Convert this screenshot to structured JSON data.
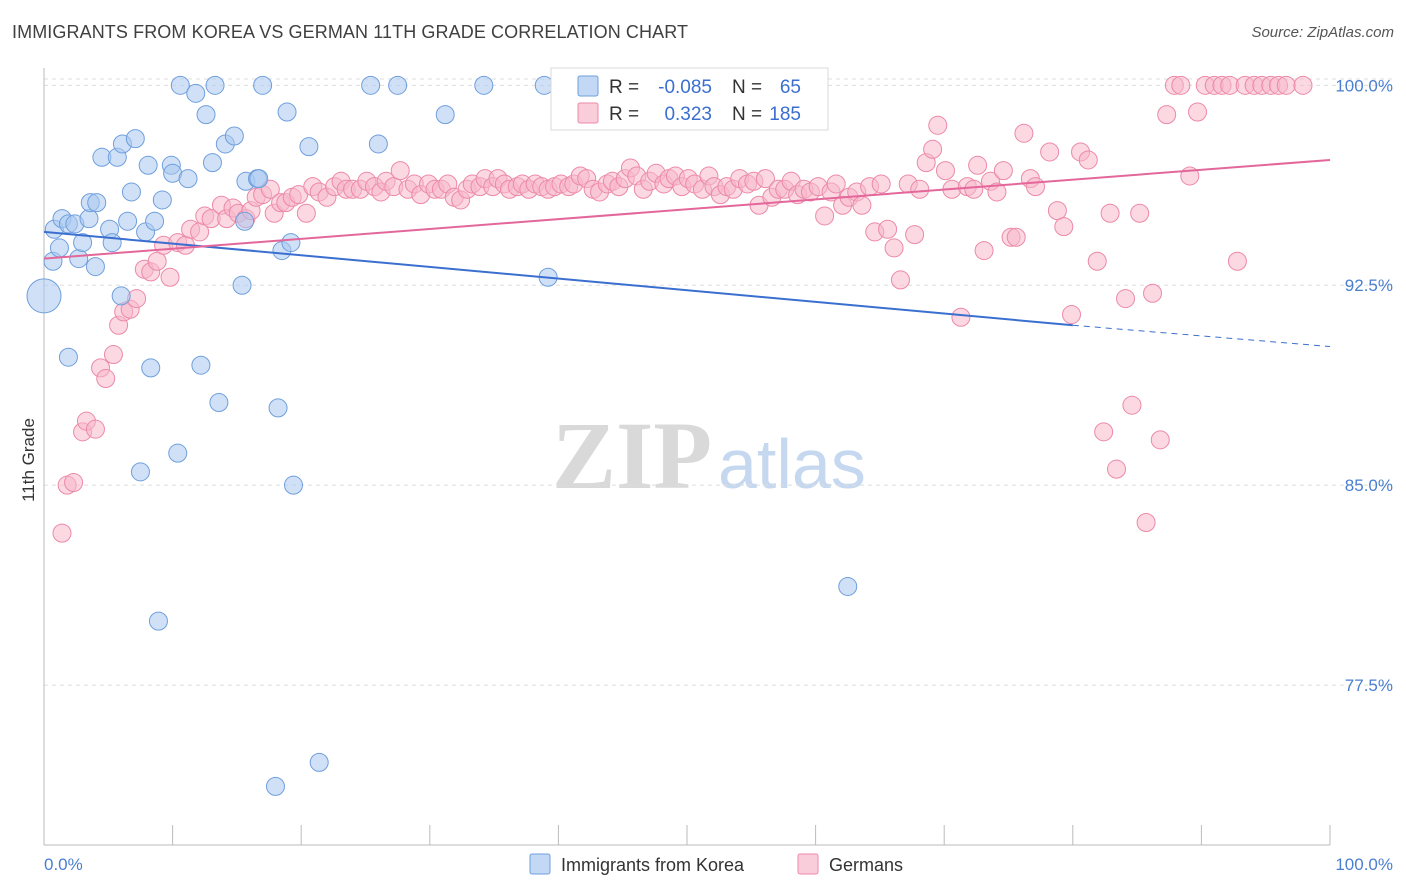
{
  "title": "IMMIGRANTS FROM KOREA VS GERMAN 11TH GRADE CORRELATION CHART",
  "source": "Source: ZipAtlas.com",
  "watermark": {
    "zip": "ZIP",
    "atlas": "atlas"
  },
  "colors": {
    "korea_fill": "#aac8f0",
    "korea_stroke": "#6f9fdc",
    "korea_line": "#3a6fd0",
    "german_fill": "#f7b8cb",
    "german_stroke": "#ec89a9",
    "german_line": "#e3679a",
    "grid": "#dddddd",
    "tick_text": "#4a7fd0"
  },
  "legend_stats": {
    "korea": {
      "r_label": "R =",
      "r_value": "-0.085",
      "n_label": "N =",
      "n_value": "65"
    },
    "german": {
      "r_label": "R =",
      "r_value": "0.323",
      "n_label": "N =",
      "n_value": "185"
    }
  },
  "chart_data": {
    "type": "scatter",
    "ylabel": "11th Grade",
    "xlim": [
      0,
      100
    ],
    "ylim": [
      71.5,
      100.5
    ],
    "x_tick_labels": [
      "0.0%",
      "100.0%"
    ],
    "y_ticks": [
      77.5,
      85.0,
      92.5,
      100.0
    ],
    "y_tick_labels": [
      "77.5%",
      "85.0%",
      "92.5%",
      "100.0%"
    ],
    "grid": true,
    "legend": [
      "Immigrants from Korea",
      "Germans"
    ],
    "legend_position": "bottom",
    "series": [
      {
        "name": "Immigrants from Korea",
        "trend": {
          "x": [
            0,
            80
          ],
          "y": [
            94.5,
            91.0
          ],
          "dashed_to": [
            100,
            90.2
          ]
        },
        "points": [
          [
            0,
            92.1
          ],
          [
            0.7,
            93.4
          ],
          [
            0.8,
            94.6
          ],
          [
            1.2,
            93.9
          ],
          [
            1.4,
            95.0
          ],
          [
            1.9,
            94.8
          ],
          [
            2.4,
            94.8
          ],
          [
            1.9,
            89.8
          ],
          [
            2.7,
            93.5
          ],
          [
            3.0,
            94.1
          ],
          [
            3.5,
            95.0
          ],
          [
            3.6,
            95.6
          ],
          [
            4.1,
            95.6
          ],
          [
            4.0,
            93.2
          ],
          [
            4.5,
            97.3
          ],
          [
            5.1,
            94.6
          ],
          [
            5.3,
            94.1
          ],
          [
            5.7,
            97.3
          ],
          [
            6.0,
            92.1
          ],
          [
            6.1,
            97.8
          ],
          [
            6.5,
            94.9
          ],
          [
            6.8,
            96.0
          ],
          [
            7.1,
            98.0
          ],
          [
            7.5,
            85.5
          ],
          [
            7.9,
            94.5
          ],
          [
            8.1,
            97.0
          ],
          [
            8.3,
            89.4
          ],
          [
            8.6,
            94.9
          ],
          [
            8.9,
            79.9
          ],
          [
            9.2,
            95.7
          ],
          [
            9.9,
            97.0
          ],
          [
            10.0,
            96.7
          ],
          [
            10.4,
            86.2
          ],
          [
            10.6,
            100.0
          ],
          [
            11.2,
            96.5
          ],
          [
            11.8,
            99.7
          ],
          [
            12.2,
            89.5
          ],
          [
            12.6,
            98.9
          ],
          [
            13.1,
            97.1
          ],
          [
            13.3,
            100.0
          ],
          [
            13.6,
            88.1
          ],
          [
            14.1,
            97.8
          ],
          [
            14.8,
            98.1
          ],
          [
            15.4,
            92.5
          ],
          [
            15.6,
            94.9
          ],
          [
            15.7,
            96.4
          ],
          [
            16.6,
            96.5
          ],
          [
            16.7,
            96.5
          ],
          [
            17.0,
            100.0
          ],
          [
            18.0,
            73.7
          ],
          [
            18.2,
            87.9
          ],
          [
            18.5,
            93.8
          ],
          [
            18.9,
            99.0
          ],
          [
            19.2,
            94.1
          ],
          [
            19.4,
            85.0
          ],
          [
            20.6,
            97.7
          ],
          [
            21.4,
            74.6
          ],
          [
            25.4,
            100.0
          ],
          [
            26.0,
            97.8
          ],
          [
            27.5,
            100.0
          ],
          [
            31.2,
            98.9
          ],
          [
            34.2,
            100.0
          ],
          [
            38.9,
            100.0
          ],
          [
            39.2,
            92.8
          ],
          [
            62.5,
            81.2
          ]
        ]
      },
      {
        "name": "Germans",
        "trend": {
          "x": [
            0,
            100
          ],
          "y": [
            93.5,
            97.2
          ]
        },
        "points": [
          [
            1.4,
            83.2
          ],
          [
            1.8,
            85.0
          ],
          [
            2.3,
            85.1
          ],
          [
            3.0,
            87.0
          ],
          [
            3.3,
            87.4
          ],
          [
            4.0,
            87.1
          ],
          [
            4.4,
            89.4
          ],
          [
            4.8,
            89.0
          ],
          [
            5.4,
            89.9
          ],
          [
            5.8,
            91.0
          ],
          [
            6.2,
            91.5
          ],
          [
            6.7,
            91.6
          ],
          [
            7.2,
            92.0
          ],
          [
            7.8,
            93.1
          ],
          [
            8.3,
            93.0
          ],
          [
            8.8,
            93.4
          ],
          [
            9.3,
            94.0
          ],
          [
            9.8,
            92.8
          ],
          [
            10.4,
            94.1
          ],
          [
            11.0,
            94.0
          ],
          [
            11.4,
            94.6
          ],
          [
            12.1,
            94.5
          ],
          [
            12.5,
            95.1
          ],
          [
            13.0,
            95.0
          ],
          [
            13.8,
            95.5
          ],
          [
            14.2,
            95.0
          ],
          [
            14.7,
            95.4
          ],
          [
            15.1,
            95.2
          ],
          [
            15.7,
            95.0
          ],
          [
            16.1,
            95.3
          ],
          [
            16.5,
            95.8
          ],
          [
            17.0,
            95.9
          ],
          [
            17.6,
            96.1
          ],
          [
            17.9,
            95.2
          ],
          [
            18.4,
            95.6
          ],
          [
            18.8,
            95.6
          ],
          [
            19.3,
            95.8
          ],
          [
            19.8,
            95.9
          ],
          [
            20.4,
            95.2
          ],
          [
            20.9,
            96.2
          ],
          [
            21.4,
            96.0
          ],
          [
            22.0,
            95.8
          ],
          [
            22.6,
            96.2
          ],
          [
            23.1,
            96.4
          ],
          [
            23.5,
            96.1
          ],
          [
            24.0,
            96.1
          ],
          [
            24.6,
            96.1
          ],
          [
            25.1,
            96.4
          ],
          [
            25.7,
            96.2
          ],
          [
            26.2,
            96.0
          ],
          [
            26.6,
            96.4
          ],
          [
            27.2,
            96.2
          ],
          [
            27.7,
            96.8
          ],
          [
            28.3,
            96.1
          ],
          [
            28.8,
            96.3
          ],
          [
            29.3,
            95.9
          ],
          [
            29.9,
            96.3
          ],
          [
            30.4,
            96.1
          ],
          [
            30.9,
            96.1
          ],
          [
            31.4,
            96.3
          ],
          [
            31.9,
            95.8
          ],
          [
            32.4,
            95.7
          ],
          [
            32.9,
            96.1
          ],
          [
            33.3,
            96.3
          ],
          [
            33.9,
            96.2
          ],
          [
            34.3,
            96.5
          ],
          [
            34.9,
            96.2
          ],
          [
            35.3,
            96.5
          ],
          [
            35.8,
            96.3
          ],
          [
            36.2,
            96.1
          ],
          [
            36.8,
            96.2
          ],
          [
            37.2,
            96.3
          ],
          [
            37.7,
            96.1
          ],
          [
            38.2,
            96.3
          ],
          [
            38.7,
            96.2
          ],
          [
            39.2,
            96.1
          ],
          [
            39.7,
            96.2
          ],
          [
            40.2,
            96.3
          ],
          [
            40.8,
            96.2
          ],
          [
            41.2,
            96.3
          ],
          [
            41.7,
            96.6
          ],
          [
            42.2,
            96.5
          ],
          [
            42.7,
            96.1
          ],
          [
            43.2,
            96.0
          ],
          [
            43.8,
            96.3
          ],
          [
            44.2,
            96.4
          ],
          [
            44.7,
            96.2
          ],
          [
            45.2,
            96.5
          ],
          [
            45.6,
            96.9
          ],
          [
            46.1,
            96.6
          ],
          [
            46.6,
            96.1
          ],
          [
            47.1,
            96.4
          ],
          [
            47.6,
            96.7
          ],
          [
            48.2,
            96.3
          ],
          [
            48.6,
            96.5
          ],
          [
            49.1,
            96.6
          ],
          [
            49.6,
            96.2
          ],
          [
            50.1,
            96.5
          ],
          [
            50.6,
            96.3
          ],
          [
            51.2,
            96.1
          ],
          [
            51.7,
            96.6
          ],
          [
            52.1,
            96.2
          ],
          [
            52.6,
            95.9
          ],
          [
            53.1,
            96.2
          ],
          [
            53.6,
            96.1
          ],
          [
            54.1,
            96.5
          ],
          [
            54.7,
            96.3
          ],
          [
            55.2,
            96.4
          ],
          [
            55.6,
            95.5
          ],
          [
            56.1,
            96.5
          ],
          [
            56.6,
            95.8
          ],
          [
            57.1,
            96.1
          ],
          [
            57.6,
            96.1
          ],
          [
            58.1,
            96.4
          ],
          [
            58.6,
            95.9
          ],
          [
            59.1,
            96.1
          ],
          [
            59.6,
            96.0
          ],
          [
            60.2,
            96.2
          ],
          [
            60.7,
            95.1
          ],
          [
            61.2,
            96.0
          ],
          [
            61.6,
            96.3
          ],
          [
            62.1,
            95.5
          ],
          [
            62.6,
            95.8
          ],
          [
            63.2,
            96.0
          ],
          [
            63.6,
            95.5
          ],
          [
            64.2,
            96.2
          ],
          [
            64.6,
            94.5
          ],
          [
            65.1,
            96.3
          ],
          [
            65.6,
            94.6
          ],
          [
            66.1,
            93.9
          ],
          [
            66.6,
            92.7
          ],
          [
            67.2,
            96.3
          ],
          [
            67.7,
            94.4
          ],
          [
            68.1,
            96.1
          ],
          [
            68.6,
            97.1
          ],
          [
            69.1,
            97.6
          ],
          [
            69.5,
            98.5
          ],
          [
            70.1,
            96.8
          ],
          [
            70.6,
            96.1
          ],
          [
            71.3,
            91.3
          ],
          [
            71.8,
            96.2
          ],
          [
            72.3,
            96.1
          ],
          [
            72.6,
            97.0
          ],
          [
            73.1,
            93.8
          ],
          [
            73.6,
            96.4
          ],
          [
            74.1,
            96.0
          ],
          [
            74.6,
            96.8
          ],
          [
            75.2,
            94.3
          ],
          [
            75.6,
            94.3
          ],
          [
            76.2,
            98.2
          ],
          [
            76.7,
            96.5
          ],
          [
            77.1,
            96.2
          ],
          [
            78.2,
            97.5
          ],
          [
            78.8,
            95.3
          ],
          [
            79.3,
            94.7
          ],
          [
            79.9,
            91.4
          ],
          [
            80.6,
            97.5
          ],
          [
            81.2,
            97.2
          ],
          [
            81.9,
            93.4
          ],
          [
            82.4,
            87.0
          ],
          [
            82.9,
            95.2
          ],
          [
            83.4,
            85.6
          ],
          [
            84.1,
            92.0
          ],
          [
            84.6,
            88.0
          ],
          [
            85.2,
            95.2
          ],
          [
            85.7,
            83.6
          ],
          [
            86.2,
            92.2
          ],
          [
            86.8,
            86.7
          ],
          [
            87.3,
            98.9
          ],
          [
            87.9,
            100.0
          ],
          [
            88.4,
            100.0
          ],
          [
            89.1,
            96.6
          ],
          [
            89.7,
            99.0
          ],
          [
            90.3,
            100.0
          ],
          [
            91.0,
            100.0
          ],
          [
            91.6,
            100.0
          ],
          [
            92.2,
            100.0
          ],
          [
            92.8,
            93.4
          ],
          [
            93.4,
            100.0
          ],
          [
            94.1,
            100.0
          ],
          [
            94.7,
            100.0
          ],
          [
            95.4,
            100.0
          ],
          [
            96.0,
            100.0
          ],
          [
            96.6,
            100.0
          ],
          [
            97.9,
            100.0
          ]
        ]
      }
    ]
  }
}
